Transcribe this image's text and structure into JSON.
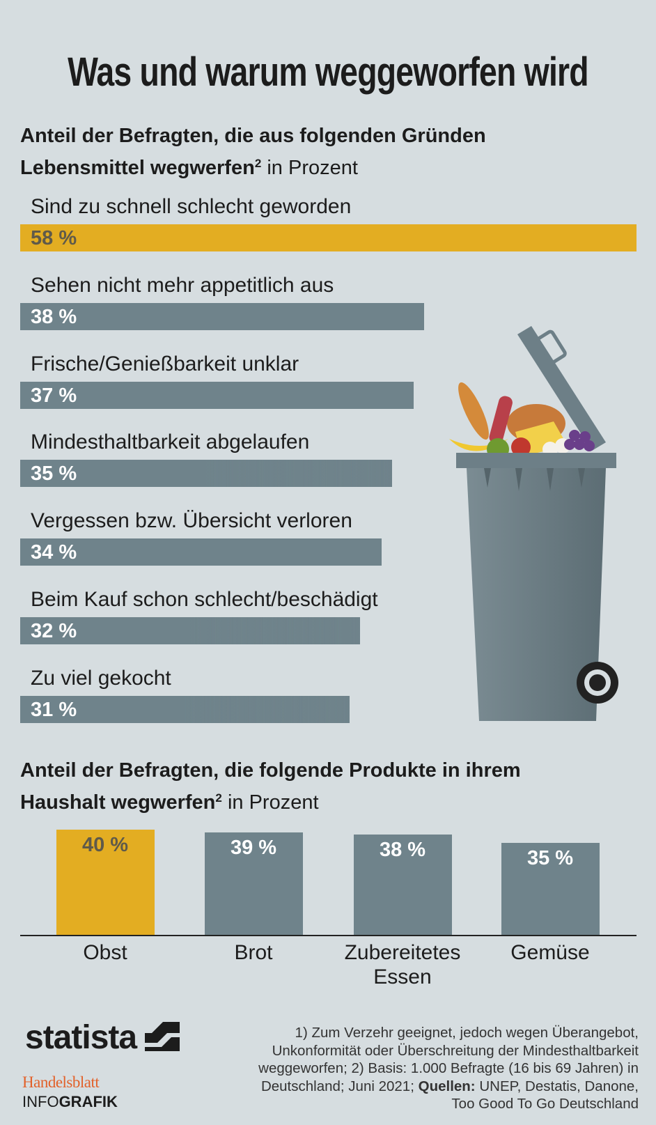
{
  "title": "Was und warum weggeworfen wird",
  "chart_data": [
    {
      "type": "hbar",
      "title": "Anteil der Befragten, die aus folgenden Gründen Lebensmittel wegwerfen",
      "title_footnote": "2",
      "unit": "in Prozent",
      "categories": [
        "Sind zu schnell schlecht geworden",
        "Sehen nicht mehr appetitlich aus",
        "Frische/Genießbarkeit unklar",
        "Mindesthaltbarkeit abgelaufen",
        "Vergessen bzw. Übersicht verloren",
        "Beim Kauf schon schlecht/beschädigt",
        "Zu viel gekocht"
      ],
      "values": [
        58,
        38,
        37,
        35,
        34,
        32,
        31
      ],
      "value_labels": [
        "58 %",
        "38 %",
        "37 %",
        "35 %",
        "34 %",
        "32 %",
        "31 %"
      ],
      "colors": [
        "#e3ad22",
        "#6f838b",
        "#6f838b",
        "#6f838b",
        "#6f838b",
        "#6f838b",
        "#6f838b"
      ],
      "value_label_colors": [
        "#5f5a4a",
        "#ffffff",
        "#ffffff",
        "#ffffff",
        "#ffffff",
        "#ffffff",
        "#ffffff"
      ]
    },
    {
      "type": "bar",
      "title": "Anteil der Befragten, die folgende Produkte in ihrem Haushalt wegwerfen",
      "title_footnote": "2",
      "unit": "in Prozent",
      "categories": [
        "Obst",
        "Brot",
        "Zubereitetes Essen",
        "Gemüse"
      ],
      "values": [
        40,
        39,
        38,
        35
      ],
      "value_labels": [
        "40 %",
        "39 %",
        "38 %",
        "35 %"
      ],
      "colors": [
        "#e3ad22",
        "#6f838b",
        "#6f838b",
        "#6f838b"
      ],
      "value_label_colors": [
        "#5f5a4a",
        "#ffffff",
        "#ffffff",
        "#ffffff"
      ]
    }
  ],
  "footer": {
    "logo": "statista",
    "publisher": "Handelsblatt",
    "infografik_light": "INFO",
    "infografik_bold": "GRAFIK",
    "note": "1) Zum Verzehr geeignet, jedoch wegen Überangebot, Unkonformität oder Überschreitung der Mindesthaltbarkeit weggeworfen; 2) Basis: 1.000 Befragte (16 bis 69 Jahren) in Deutschland; Juni 2021;",
    "sources_label": "Quellen:",
    "sources": "UNEP, Destatis, Danone, Too Good To Go Deutschland"
  }
}
